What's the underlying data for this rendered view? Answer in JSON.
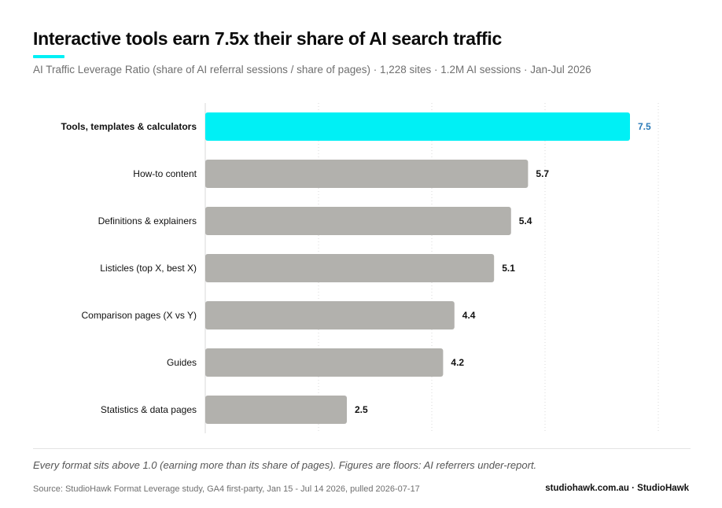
{
  "header": {
    "title": "Interactive tools earn 7.5x their share of AI search traffic",
    "subtitle": "AI Traffic Leverage Ratio (share of AI referral sessions / share of pages) · 1,228 sites · 1.2M AI sessions · Jan-Jul 2026"
  },
  "colors": {
    "accent": "#00f0f5",
    "highlight_bar": "#00f0f5",
    "bar": "#b2b1ad",
    "highlight_value": "#2a7ab8",
    "grid": "#d9d9d9"
  },
  "chart_data": {
    "type": "bar",
    "orientation": "horizontal",
    "categories": [
      "Tools, templates & calculators",
      "How-to content",
      "Definitions & explainers",
      "Listicles (top X, best X)",
      "Comparison pages (X vs Y)",
      "Guides",
      "Statistics & data pages"
    ],
    "values": [
      7.5,
      5.7,
      5.4,
      5.1,
      4.4,
      4.2,
      2.5
    ],
    "value_labels": [
      "7.5",
      "5.7",
      "5.4",
      "5.1",
      "4.4",
      "4.2",
      "2.5"
    ],
    "highlight_index": 0,
    "xlim": [
      0,
      8
    ],
    "grid": "vertical-dotted",
    "xlabel": "",
    "ylabel": ""
  },
  "footer": {
    "note": "Every format sits above 1.0 (earning more than its share of pages). Figures are floors: AI referrers under-report.",
    "source": "Source: StudioHawk Format Leverage study, GA4 first-party, Jan 15 - Jul 14 2026, pulled 2026-07-17",
    "brand": "studiohawk.com.au · StudioHawk"
  }
}
